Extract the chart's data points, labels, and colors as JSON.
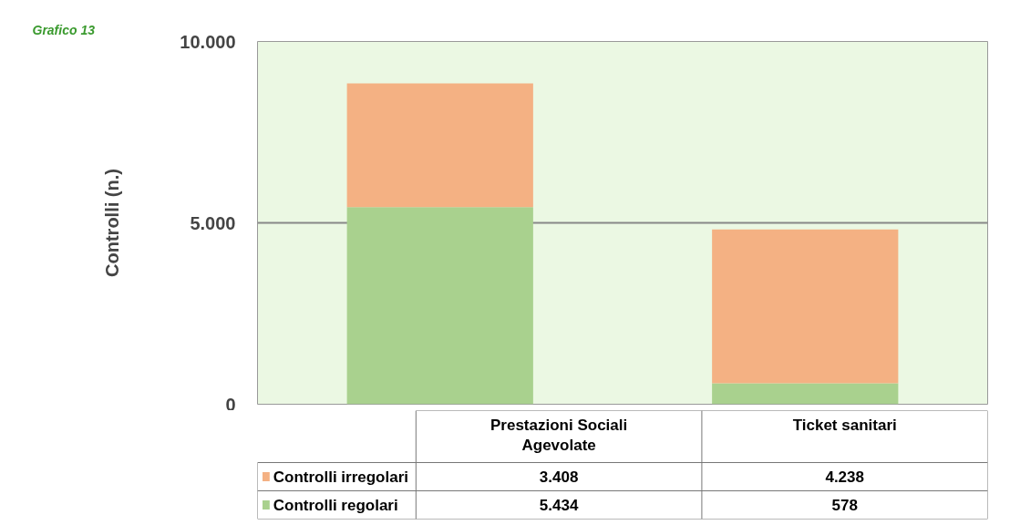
{
  "chart_data": {
    "type": "bar",
    "title": "Grafico 13",
    "ylabel": "Controlli (n.)",
    "categories": [
      "Prestazioni Sociali Agevolate",
      "Ticket sanitari"
    ],
    "series": [
      {
        "name": "Controlli regolari",
        "color": "#a9d18e",
        "values": [
          5434,
          578
        ],
        "value_labels": [
          "5.434",
          "578"
        ]
      },
      {
        "name": "Controlli irregolari",
        "color": "#f4b183",
        "values": [
          3408,
          4238
        ],
        "value_labels": [
          "3.408",
          "4.238"
        ]
      }
    ],
    "stacked": true,
    "ylim": [
      0,
      10000
    ],
    "yticks": [
      {
        "value": 0,
        "label": "0"
      },
      {
        "value": 5000,
        "label": "5.000"
      },
      {
        "value": 10000,
        "label": "10.000"
      }
    ],
    "grid": "y",
    "legend": "bottom"
  }
}
